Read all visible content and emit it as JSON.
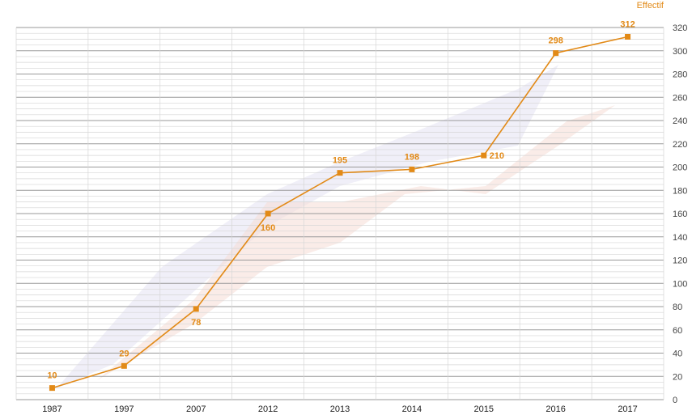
{
  "chart_data": {
    "type": "line",
    "title": "",
    "ylabel": "Effectif",
    "xlabel": "",
    "categories": [
      "1987",
      "1997",
      "2007",
      "2012",
      "2013",
      "2014",
      "2015",
      "2016",
      "2017"
    ],
    "series": [
      {
        "values": [
          10,
          29,
          78,
          160,
          195,
          198,
          210,
          298,
          312
        ],
        "labels": [
          "10",
          "29",
          "78",
          "160",
          "195",
          "198",
          "210",
          "298",
          "312"
        ],
        "color": "#e28a17"
      }
    ],
    "ylim": [
      0,
      320
    ],
    "yticks": [
      "0",
      "20",
      "40",
      "60",
      "80",
      "100",
      "120",
      "140",
      "160",
      "180",
      "200",
      "220",
      "240",
      "260",
      "280",
      "300",
      "320"
    ],
    "grid": true,
    "y_axis_position": "right"
  },
  "colors": {
    "accent": "#e28a17",
    "grid_major": "#9a9a9a",
    "grid_minor": "#d6d6d6",
    "band_blue": "#e3e2f2",
    "band_pink": "#f6dcd6"
  }
}
